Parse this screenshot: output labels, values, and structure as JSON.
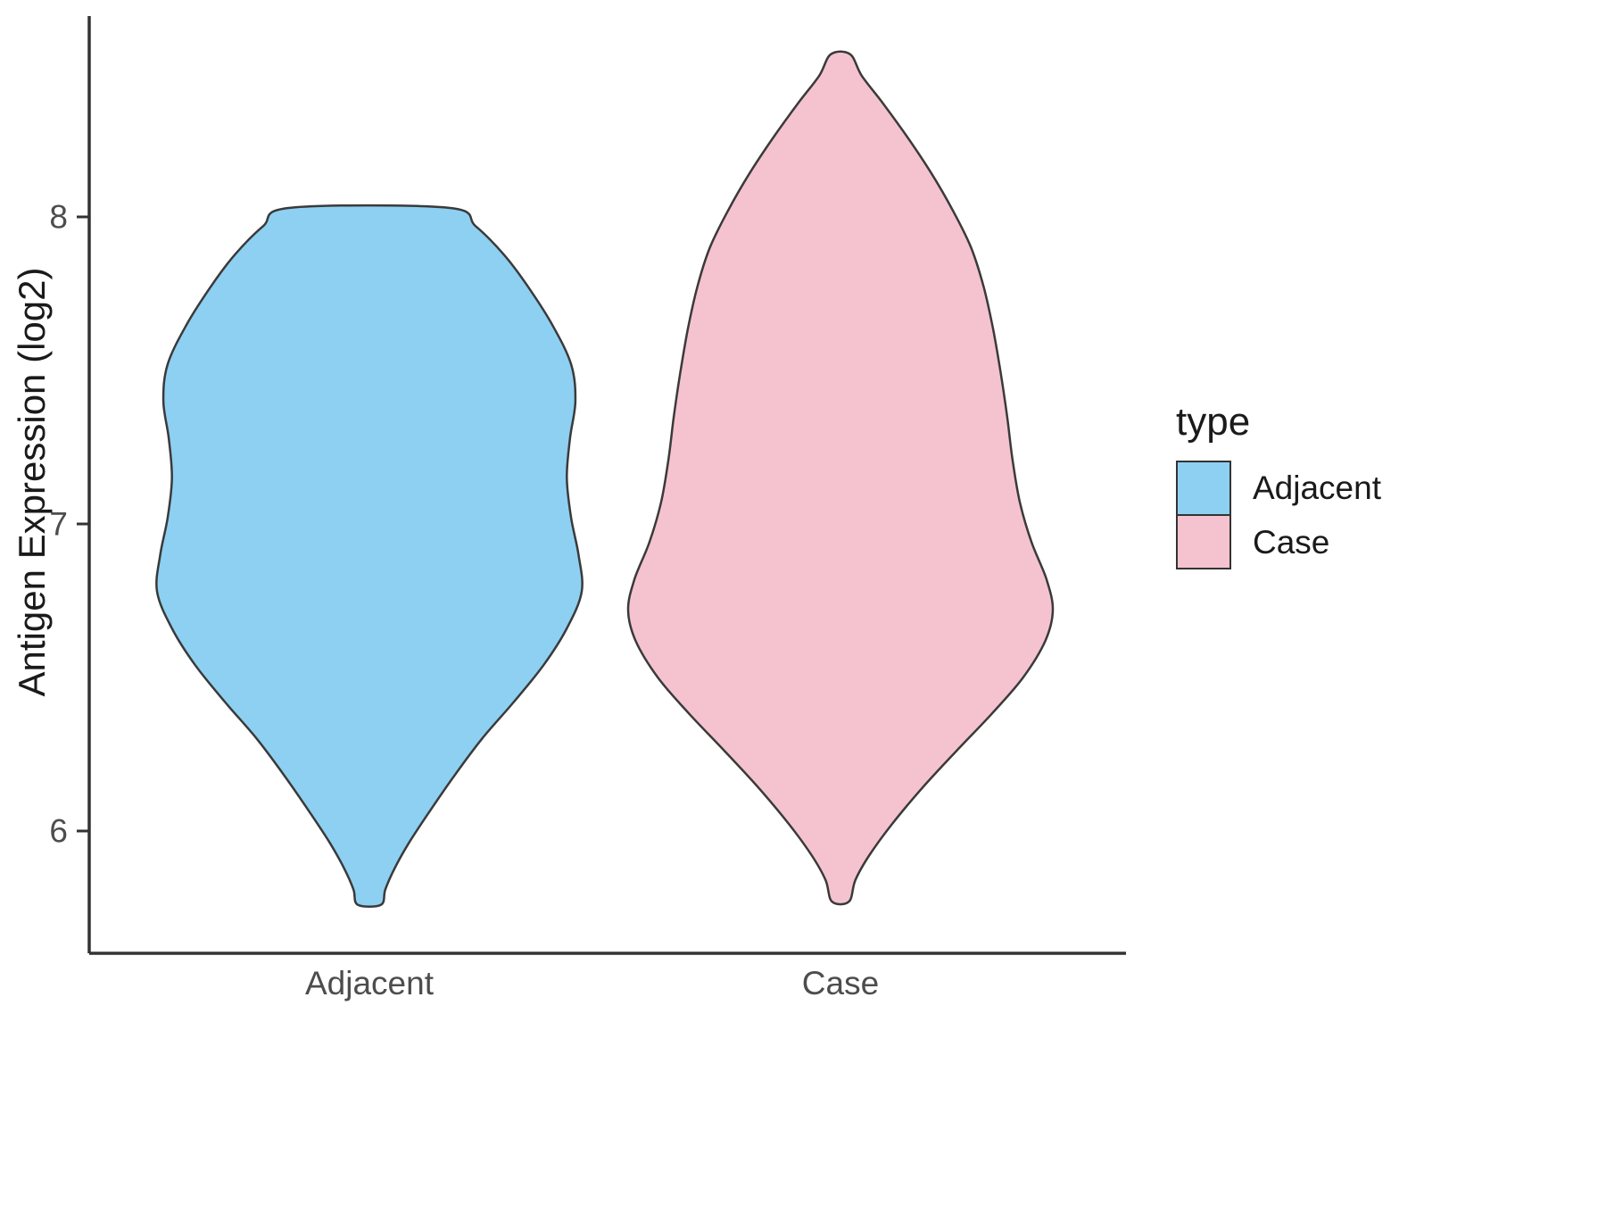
{
  "chart_data": {
    "type": "violin",
    "title": "",
    "xlabel": "",
    "ylabel": "Antigen Expression (log2)",
    "categories": [
      "Adjacent",
      "Case"
    ],
    "y_ticks": [
      {
        "value": 6,
        "label": "6"
      },
      {
        "value": 7,
        "label": "7"
      },
      {
        "value": 8,
        "label": "8"
      }
    ],
    "y_domain": [
      5.55,
      8.65
    ],
    "grid": false,
    "legend": {
      "title": "type",
      "position": "right",
      "entries": [
        {
          "label": "Adjacent",
          "color": "#8DD0F2"
        },
        {
          "label": "Case",
          "color": "#F5C3CF"
        }
      ]
    },
    "violins": [
      {
        "category": "Adjacent",
        "fill": "#8DD0F2",
        "outline": "#3A3A3A",
        "value_range": [
          5.76,
          8.03
        ],
        "profile": [
          [
            8.03,
            0.37
          ],
          [
            7.97,
            0.5
          ],
          [
            7.88,
            0.63
          ],
          [
            7.78,
            0.74
          ],
          [
            7.65,
            0.86
          ],
          [
            7.52,
            0.95
          ],
          [
            7.4,
            0.97
          ],
          [
            7.28,
            0.945
          ],
          [
            7.15,
            0.93
          ],
          [
            7.02,
            0.95
          ],
          [
            6.9,
            0.985
          ],
          [
            6.78,
            1.0
          ],
          [
            6.66,
            0.93
          ],
          [
            6.54,
            0.82
          ],
          [
            6.42,
            0.68
          ],
          [
            6.3,
            0.53
          ],
          [
            6.18,
            0.4
          ],
          [
            6.06,
            0.28
          ],
          [
            5.96,
            0.185
          ],
          [
            5.88,
            0.12
          ],
          [
            5.81,
            0.075
          ],
          [
            5.76,
            0.055
          ]
        ]
      },
      {
        "category": "Case",
        "fill": "#F5C3CF",
        "outline": "#3A3A3A",
        "value_range": [
          5.77,
          8.53
        ],
        "profile": [
          [
            8.53,
            0.045
          ],
          [
            8.46,
            0.1
          ],
          [
            8.37,
            0.2
          ],
          [
            8.26,
            0.315
          ],
          [
            8.14,
            0.43
          ],
          [
            8.02,
            0.53
          ],
          [
            7.9,
            0.615
          ],
          [
            7.77,
            0.675
          ],
          [
            7.63,
            0.72
          ],
          [
            7.49,
            0.755
          ],
          [
            7.35,
            0.785
          ],
          [
            7.21,
            0.81
          ],
          [
            7.07,
            0.845
          ],
          [
            6.94,
            0.9
          ],
          [
            6.82,
            0.97
          ],
          [
            6.72,
            1.0
          ],
          [
            6.62,
            0.965
          ],
          [
            6.5,
            0.86
          ],
          [
            6.38,
            0.71
          ],
          [
            6.26,
            0.545
          ],
          [
            6.14,
            0.385
          ],
          [
            6.02,
            0.24
          ],
          [
            5.92,
            0.135
          ],
          [
            5.84,
            0.07
          ],
          [
            5.77,
            0.04
          ]
        ]
      }
    ]
  }
}
